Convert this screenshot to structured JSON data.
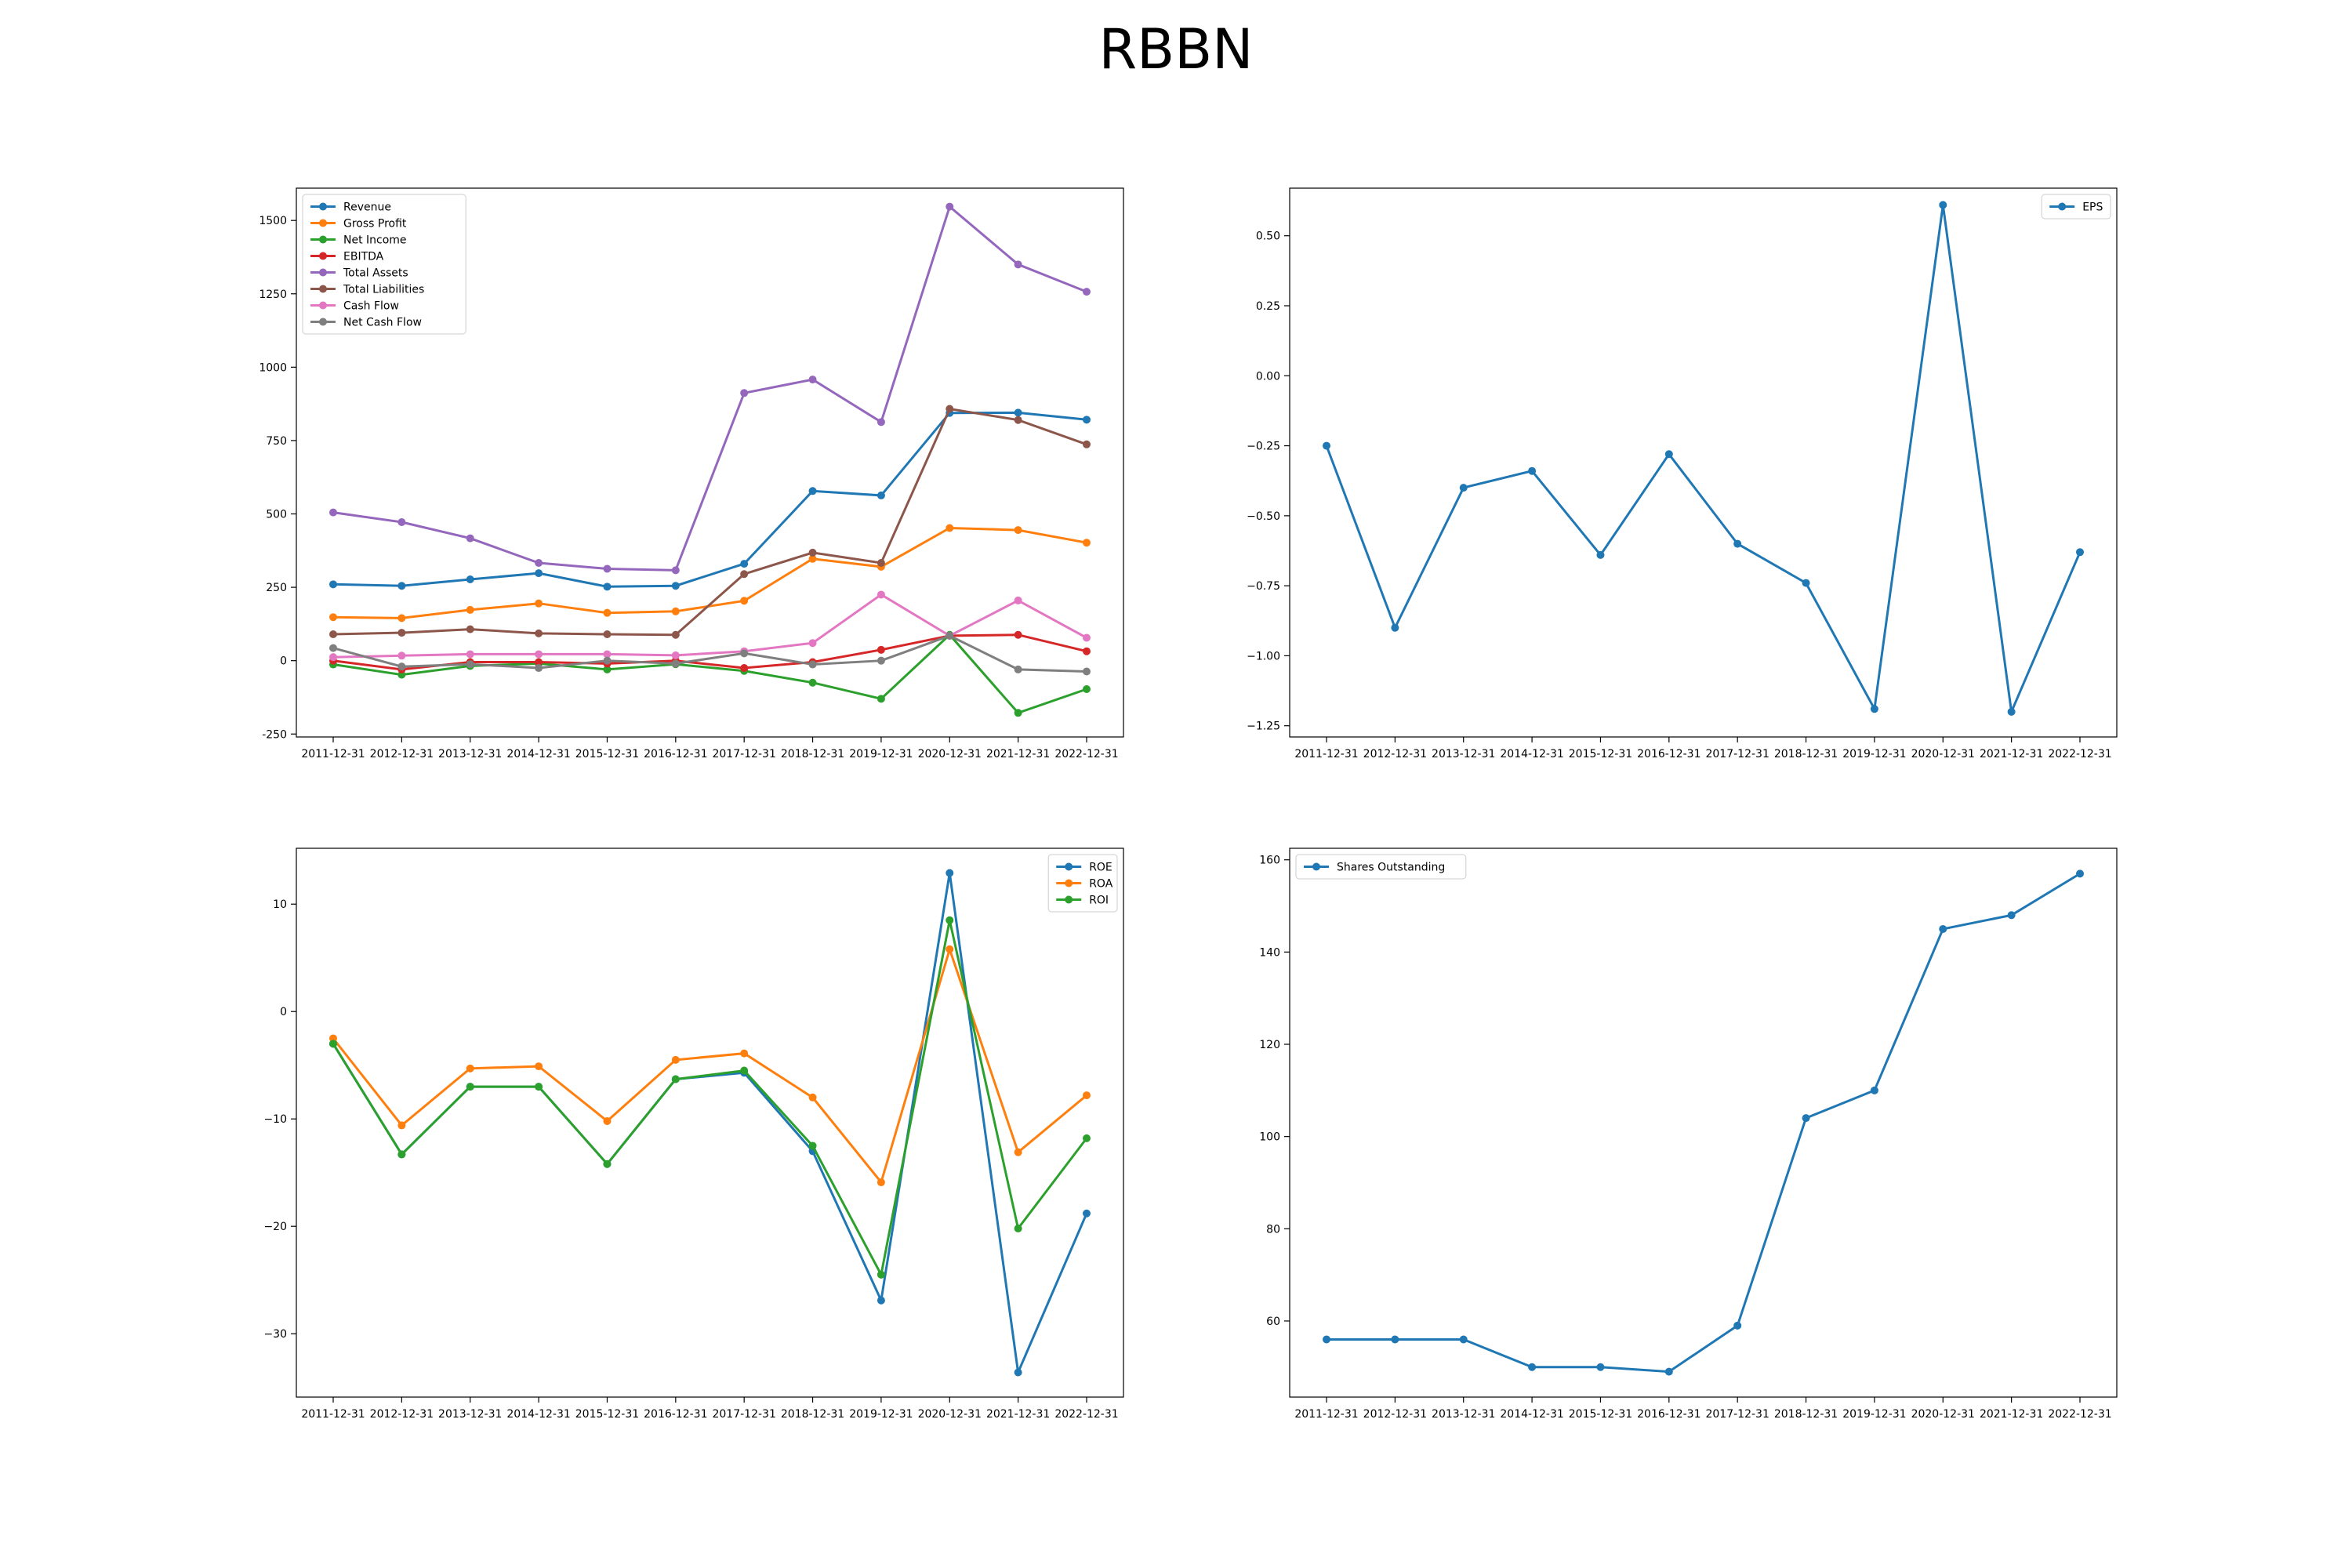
{
  "figure": {
    "title": "RBBN"
  },
  "chart_data": [
    {
      "type": "line",
      "categories": [
        "2011-12-31",
        "2012-12-31",
        "2013-12-31",
        "2014-12-31",
        "2015-12-31",
        "2016-12-31",
        "2017-12-31",
        "2018-12-31",
        "2019-12-31",
        "2020-12-31",
        "2021-12-31",
        "2022-12-31"
      ],
      "ylim": [
        -260,
        1610
      ],
      "yticks": [
        -250,
        0,
        250,
        500,
        750,
        1000,
        1250,
        1500
      ],
      "legend": "upper left",
      "grid": false,
      "series": [
        {
          "name": "Revenue",
          "color": "#1f77b4",
          "values": [
            260,
            255,
            277,
            298,
            252,
            255,
            330,
            578,
            563,
            844,
            845,
            821
          ]
        },
        {
          "name": "Gross Profit",
          "color": "#ff7f0e",
          "values": [
            148,
            145,
            173,
            195,
            163,
            168,
            204,
            347,
            320,
            452,
            445,
            402
          ]
        },
        {
          "name": "Net Income",
          "color": "#2ca02c",
          "values": [
            -13,
            -48,
            -18,
            -10,
            -30,
            -12,
            -35,
            -75,
            -130,
            88,
            -178,
            -97
          ]
        },
        {
          "name": "EBITDA",
          "color": "#d62728",
          "values": [
            0,
            -30,
            -5,
            -5,
            -10,
            0,
            -25,
            -5,
            37,
            85,
            88,
            32
          ]
        },
        {
          "name": "Total Assets",
          "color": "#9467bd",
          "values": [
            505,
            472,
            417,
            333,
            313,
            308,
            912,
            958,
            813,
            1547,
            1350,
            1257
          ]
        },
        {
          "name": "Total Liabilities",
          "color": "#8c564b",
          "values": [
            90,
            95,
            107,
            93,
            90,
            88,
            295,
            368,
            333,
            858,
            820,
            737
          ]
        },
        {
          "name": "Cash Flow",
          "color": "#e377c2",
          "values": [
            12,
            17,
            22,
            22,
            22,
            18,
            32,
            60,
            225,
            85,
            205,
            78
          ]
        },
        {
          "name": "Net Cash Flow",
          "color": "#7f7f7f",
          "values": [
            43,
            -20,
            -12,
            -25,
            0,
            -10,
            25,
            -13,
            0,
            85,
            -30,
            -37
          ]
        }
      ]
    },
    {
      "type": "line",
      "categories": [
        "2011-12-31",
        "2012-12-31",
        "2013-12-31",
        "2014-12-31",
        "2015-12-31",
        "2016-12-31",
        "2017-12-31",
        "2018-12-31",
        "2019-12-31",
        "2020-12-31",
        "2021-12-31",
        "2022-12-31"
      ],
      "ylim": [
        -1.29,
        0.67
      ],
      "yticks": [
        -1.25,
        -1.0,
        -0.75,
        -0.5,
        -0.25,
        0.0,
        0.25,
        0.5
      ],
      "ytick_labels": [
        "−1.25",
        "−1.00",
        "−0.75",
        "−0.50",
        "−0.25",
        "0.00",
        "0.25",
        "0.50"
      ],
      "legend": "upper right",
      "grid": false,
      "series": [
        {
          "name": "EPS",
          "color": "#1f77b4",
          "values": [
            -0.25,
            -0.9,
            -0.4,
            -0.34,
            -0.64,
            -0.28,
            -0.6,
            -0.74,
            -1.19,
            0.61,
            -1.2,
            -0.63
          ]
        }
      ]
    },
    {
      "type": "line",
      "categories": [
        "2011-12-31",
        "2012-12-31",
        "2013-12-31",
        "2014-12-31",
        "2015-12-31",
        "2016-12-31",
        "2017-12-31",
        "2018-12-31",
        "2019-12-31",
        "2020-12-31",
        "2021-12-31",
        "2022-12-31"
      ],
      "ylim": [
        -35.9,
        15.2
      ],
      "yticks": [
        -30,
        -20,
        -10,
        0,
        10
      ],
      "ytick_labels": [
        "−30",
        "−20",
        "−10",
        "0",
        "10"
      ],
      "legend": "upper right",
      "grid": false,
      "series": [
        {
          "name": "ROE",
          "color": "#1f77b4",
          "values": [
            -3.0,
            -13.3,
            -7.0,
            -7.0,
            -14.2,
            -6.3,
            -5.7,
            -13.0,
            -26.9,
            12.9,
            -33.6,
            -18.8
          ]
        },
        {
          "name": "ROA",
          "color": "#ff7f0e",
          "values": [
            -2.5,
            -10.6,
            -5.3,
            -5.1,
            -10.2,
            -4.5,
            -3.9,
            -8.0,
            -15.9,
            5.8,
            -13.1,
            -7.8
          ]
        },
        {
          "name": "ROI",
          "color": "#2ca02c",
          "values": [
            -3.0,
            -13.3,
            -7.0,
            -7.0,
            -14.2,
            -6.3,
            -5.5,
            -12.5,
            -24.5,
            8.5,
            -20.2,
            -11.8
          ]
        }
      ]
    },
    {
      "type": "line",
      "categories": [
        "2011-12-31",
        "2012-12-31",
        "2013-12-31",
        "2014-12-31",
        "2015-12-31",
        "2016-12-31",
        "2017-12-31",
        "2018-12-31",
        "2019-12-31",
        "2020-12-31",
        "2021-12-31",
        "2022-12-31"
      ],
      "ylim": [
        43.5,
        162.5
      ],
      "yticks": [
        60,
        80,
        100,
        120,
        140,
        160
      ],
      "legend": "upper left",
      "grid": false,
      "series": [
        {
          "name": "Shares Outstanding",
          "color": "#1f77b4",
          "values": [
            56,
            56,
            56,
            50,
            50,
            49,
            59,
            104,
            110,
            145,
            148,
            157
          ]
        }
      ]
    }
  ]
}
